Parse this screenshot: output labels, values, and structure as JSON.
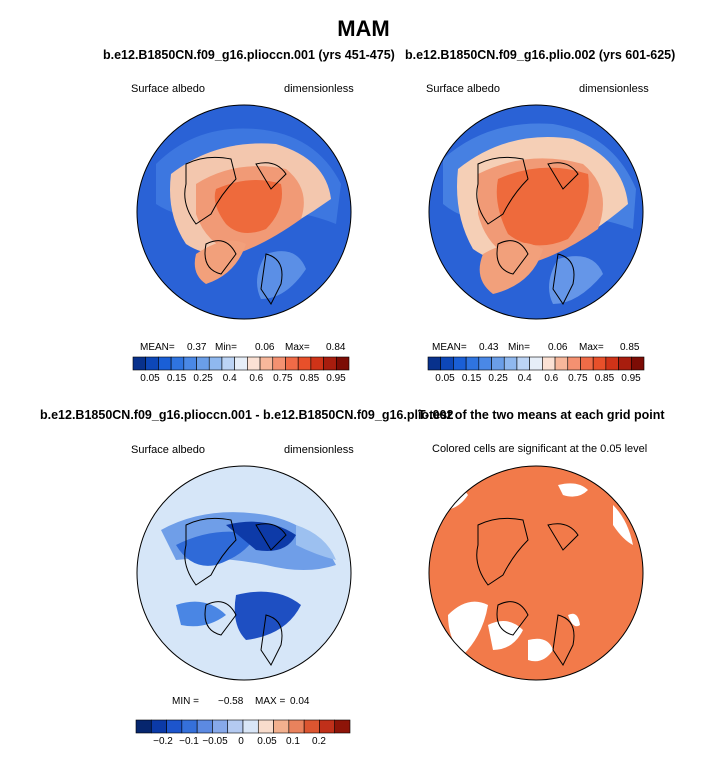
{
  "title": "MAM",
  "panels": [
    {
      "title": "b.e12.B1850CN.f09_g16.plioccn.001 (yrs 451-475)",
      "left_label": "Surface albedo",
      "right_label": "dimensionless",
      "stats": {
        "mean_label": "MEAN=",
        "mean": "0.37",
        "min_label": "Min=",
        "min": "0.06",
        "max_label": "Max=",
        "max": "0.84"
      },
      "field": "albedo_1"
    },
    {
      "title": "b.e12.B1850CN.f09_g16.plio.002 (yrs 601-625)",
      "left_label": "Surface albedo",
      "right_label": "dimensionless",
      "stats": {
        "mean_label": "MEAN=",
        "mean": "0.43",
        "min_label": "Min=",
        "min": "0.06",
        "max_label": "Max=",
        "max": "0.85"
      },
      "field": "albedo_2"
    },
    {
      "title": "b.e12.B1850CN.f09_g16.plioccn.001 - b.e12.B1850CN.f09_g16.plio.002",
      "left_label": "Surface albedo",
      "right_label": "dimensionless",
      "stats": {
        "min_label": "MIN =",
        "min": "−0.58",
        "max_label": "MAX =",
        "max": "0.04"
      },
      "field": "difference"
    },
    {
      "title": "T-test of the two means at each grid point",
      "note": "Colored cells are significant at the 0.05 level",
      "field": "significance"
    }
  ],
  "colorbars": {
    "albedo": {
      "colors": [
        "#08318c",
        "#0d47b8",
        "#1a5fd6",
        "#2f74e0",
        "#4a88e6",
        "#6a9ee8",
        "#8fb8ef",
        "#bcd4f5",
        "#e6eef8",
        "#fbe1d4",
        "#f7b79b",
        "#f49171",
        "#f06b47",
        "#e8502a",
        "#cf3318",
        "#a81d0e",
        "#7c0c05"
      ],
      "ticks": [
        "0.05",
        "0.15",
        "0.25",
        "0.4",
        "0.6",
        "0.75",
        "0.85",
        "0.95"
      ]
    },
    "difference": {
      "colors": [
        "#06266e",
        "#0b3aa8",
        "#1d55cc",
        "#3570da",
        "#5c8ae2",
        "#87a9ea",
        "#b4caf1",
        "#d9e6f7",
        "#f8dccc",
        "#f2b08e",
        "#e9825d",
        "#dc5530",
        "#c0301a",
        "#8e1408"
      ],
      "ticks": [
        "−0.2",
        "−0.1",
        "−0.05",
        "0",
        "0.05",
        "0.1",
        "0.2"
      ]
    }
  },
  "colors": {
    "ocean_blue": "#2a62d6",
    "albedo_high": "#ee6a3c",
    "diff_light": "#d6e6f8",
    "signif": "#f27a4a"
  }
}
